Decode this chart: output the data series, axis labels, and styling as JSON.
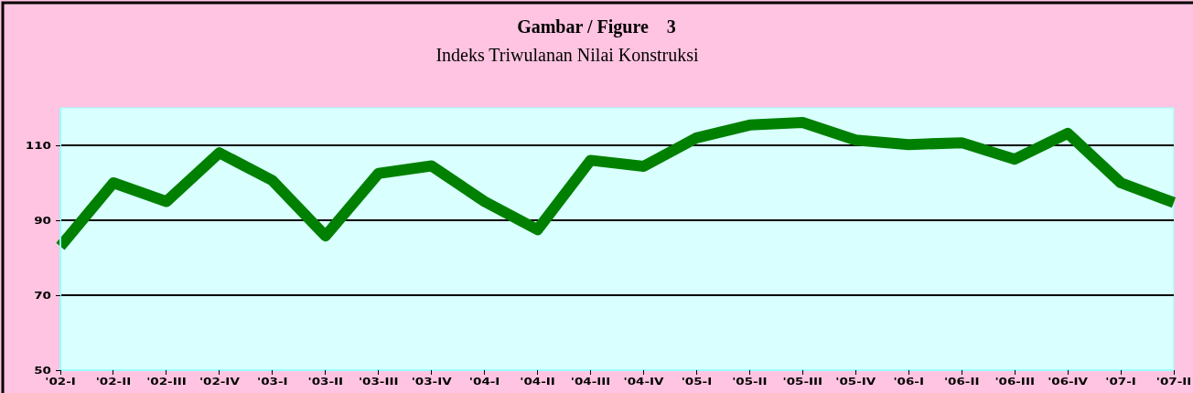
{
  "chart_data": {
    "type": "line",
    "title": "Gambar / Figure    3",
    "subtitle": "Indeks Triwulanan Nilai Konstruksi",
    "categories": [
      "'02-I",
      "'02-II",
      "'02-III",
      "'02-IV",
      "'03-I",
      "'03-II",
      "'03-III",
      "'03-IV",
      "'04-I",
      "'04-II",
      "'04-III",
      "'04-IV",
      "'05-I",
      "'05-II",
      "'05-III",
      "'05-IV",
      "'06-I",
      "'06-II",
      "'06-III",
      "'06-IV",
      "'07-I",
      "'07-II"
    ],
    "series": [
      {
        "color": "#008000",
        "values": [
          83,
          100,
          95,
          108,
          100.6,
          85.8,
          102.5,
          104.5,
          95,
          87.5,
          106,
          104.4,
          112,
          115.4,
          116.1,
          111.4,
          110.2,
          110.7,
          106.3,
          113.2,
          100,
          94.7
        ]
      }
    ],
    "ylim": [
      50,
      120
    ],
    "yticks": [
      50,
      70,
      90,
      110
    ],
    "grid": "y",
    "marker": "none",
    "line_style": "solid"
  }
}
